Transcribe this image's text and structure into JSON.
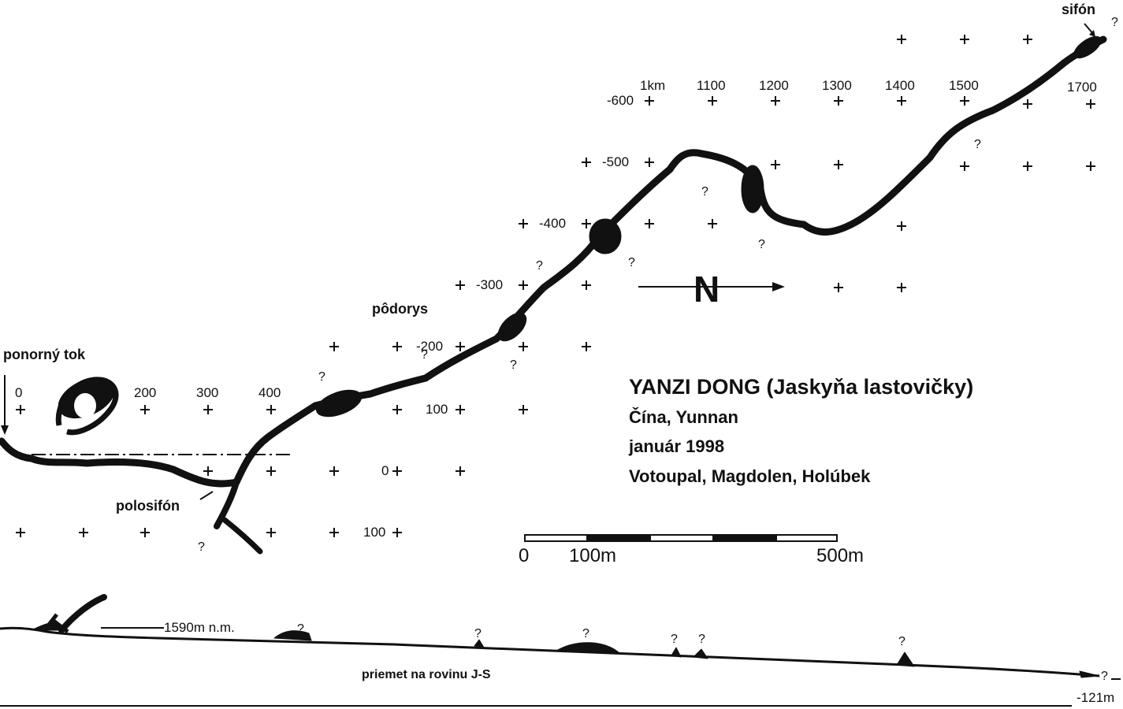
{
  "title": "YANZI DONG (Jaskyňa lastovičky)",
  "location": "Čína, Yunnan",
  "date": "január 1998",
  "authors": "Votoupal, Magdolen, Holúbek",
  "labels": {
    "sinkhole_inflow": "ponorný tok",
    "half_siphon": "polosifón",
    "plan_view": "pôdorys",
    "siphon": "sifón",
    "north": "N",
    "profile": "priemet na rovinu J-S",
    "altitude": "1590m n.m.",
    "depth": "-121m",
    "question": "?"
  },
  "scale_bar": {
    "start": "0",
    "mid": "100m",
    "end": "500m"
  },
  "distance_ticks": [
    "0",
    "200",
    "300",
    "400",
    "1km",
    "1100",
    "1200",
    "1300",
    "1400",
    "1500",
    "1700"
  ],
  "grid_labels": [
    "-600",
    "-500",
    "-400",
    "-300",
    "-200",
    "100",
    "0",
    "100"
  ]
}
